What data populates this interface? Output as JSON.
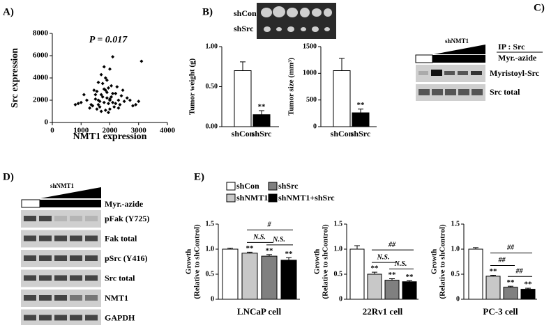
{
  "panel_labels": [
    "A)",
    "B)",
    "C)",
    "D)",
    "E)"
  ],
  "tumor_image": {
    "labels": [
      "shCon",
      "shSrc"
    ]
  },
  "blot_c": {
    "treatment": "shNMT1",
    "ip": "IP : Src",
    "probe": "Myr.-azide",
    "rows": [
      "Myristoyl-Src",
      "Src total"
    ]
  },
  "blot_d": {
    "treatment": "shNMT1",
    "probe": "Myr.-azide",
    "rows": [
      "pFak (Y725)",
      "Fak total",
      "pSrc (Y416)",
      "Src total",
      "NMT1",
      "GAPDH"
    ]
  },
  "legend_e": [
    {
      "name": "shCon",
      "color": "#ffffff"
    },
    {
      "name": "shSrc",
      "color": "#808080"
    },
    {
      "name": "shNMT1",
      "color": "#c8c8c8"
    },
    {
      "name": "shNMT1+shSrc",
      "color": "#000000"
    }
  ],
  "chart_data": [
    {
      "type": "scatter",
      "xlabel": "NMT1 expression",
      "ylabel": "Src expression",
      "annotation": "P = 0.017",
      "xlim": [
        0,
        4000
      ],
      "xticks": [
        0,
        1000,
        2000,
        3000,
        4000
      ],
      "ylim": [
        0,
        8000
      ],
      "yticks": [
        0,
        2000,
        4000,
        6000,
        8000
      ],
      "color": "#000000",
      "x": [
        1900,
        2100,
        1700,
        1600,
        2300,
        1800,
        2000,
        1500,
        2200,
        1400,
        2500,
        1750,
        1850,
        1950,
        2050,
        1650,
        2150,
        1550,
        2400,
        1300,
        1200,
        1000,
        900,
        2600,
        2700,
        3000,
        2800,
        1850,
        1950,
        2250,
        1700,
        1600,
        2000,
        2100,
        1800,
        1900,
        1450,
        2350,
        1750,
        2050,
        1650,
        1550,
        2450,
        1900,
        2000,
        2900,
        3100,
        800,
        1100,
        1700,
        1800,
        1850,
        1950,
        2100,
        2200,
        1600,
        1500,
        2300,
        1350,
        2000
      ],
      "y": [
        2200,
        1800,
        2500,
        1600,
        2000,
        3000,
        1200,
        2100,
        2600,
        1500,
        1900,
        3500,
        4000,
        1700,
        2300,
        1900,
        1400,
        2800,
        2400,
        1300,
        2000,
        1800,
        1700,
        2200,
        2000,
        1900,
        1500,
        1100,
        900,
        3200,
        1000,
        3600,
        4800,
        5900,
        5000,
        2700,
        2900,
        1600,
        2300,
        3300,
        1400,
        1200,
        2900,
        3800,
        2000,
        1600,
        5500,
        1600,
        2500,
        4300,
        1800,
        2900,
        3100,
        2600,
        1700,
        2000,
        2500,
        1300,
        1600,
        2100
      ]
    },
    {
      "type": "bar",
      "ylabel": [
        "Tumor weight (g)"
      ],
      "categories": [
        "shCon",
        "shSrc"
      ],
      "colors": [
        "#ffffff",
        "#000000"
      ],
      "values": [
        0.7,
        0.15
      ],
      "errors": [
        0.11,
        0.05
      ],
      "stars": [
        null,
        "**"
      ],
      "ylim": [
        0,
        1
      ],
      "yticks": [
        {
          "value": 0,
          "label": "0.00"
        },
        {
          "value": 0.5,
          "label": "0.50"
        },
        {
          "value": 1,
          "label": "1.00"
        }
      ]
    },
    {
      "type": "bar",
      "ylabel": [
        "Tumor size (mm³)"
      ],
      "categories": [
        "shCon",
        "shSrc"
      ],
      "colors": [
        "#ffffff",
        "#000000"
      ],
      "values": [
        1050,
        260
      ],
      "errors": [
        230,
        70
      ],
      "stars": [
        null,
        "**"
      ],
      "ylim": [
        0,
        1500
      ],
      "yticks": [
        0,
        500,
        1000,
        1500
      ]
    },
    {
      "type": "bar",
      "title": "LNCaP cell",
      "ylabel": [
        "Growth",
        "(Relative to shControl)"
      ],
      "values": [
        1.0,
        0.92,
        0.86,
        0.78
      ],
      "errors": [
        0.02,
        0.02,
        0.03,
        0.05
      ],
      "stars": [
        null,
        "**",
        "**",
        "**"
      ],
      "comparisons": [
        {
          "label": "#",
          "from": 1,
          "to": 3
        },
        {
          "label": "N.S.",
          "from": 1,
          "to": 2
        },
        {
          "label": "N.S.",
          "from": 2,
          "to": 3
        }
      ],
      "ylim": [
        0,
        1.5
      ],
      "yticks": [
        0,
        0.5,
        {
          "value": 1,
          "label": "1.0"
        },
        1.5
      ]
    },
    {
      "type": "bar",
      "title": "22Rv1 cell",
      "ylabel": [
        "Growth",
        "(Relative to shControl)"
      ],
      "values": [
        1.0,
        0.5,
        0.38,
        0.35
      ],
      "errors": [
        0.07,
        0.04,
        0.03,
        0.02
      ],
      "stars": [
        null,
        "**",
        "**",
        "**"
      ],
      "comparisons": [
        {
          "label": "##",
          "from": 1,
          "to": 3
        },
        {
          "label": "N.S.",
          "from": 1,
          "to": 2
        },
        {
          "label": "N.S.",
          "from": 2,
          "to": 3
        }
      ],
      "ylim": [
        0,
        1.5
      ],
      "yticks": [
        0,
        0.5,
        {
          "value": 1,
          "label": "1.0"
        },
        1.5
      ]
    },
    {
      "type": "bar",
      "title": "PC-3 cell",
      "ylabel": [
        "Growth",
        "(Relative to shControl)"
      ],
      "values": [
        1.0,
        0.46,
        0.24,
        0.2
      ],
      "errors": [
        0.03,
        0.02,
        0.02,
        0.02
      ],
      "stars": [
        null,
        "**",
        "**",
        "**"
      ],
      "comparisons": [
        {
          "label": "##",
          "from": 1,
          "to": 3
        },
        {
          "label": "##",
          "from": 1,
          "to": 2
        },
        {
          "label": "##",
          "from": 2,
          "to": 3
        }
      ],
      "ylim": [
        0,
        1.5
      ],
      "yticks": [
        0,
        0.5,
        {
          "value": 1,
          "label": "1.0"
        },
        1.5
      ]
    }
  ]
}
